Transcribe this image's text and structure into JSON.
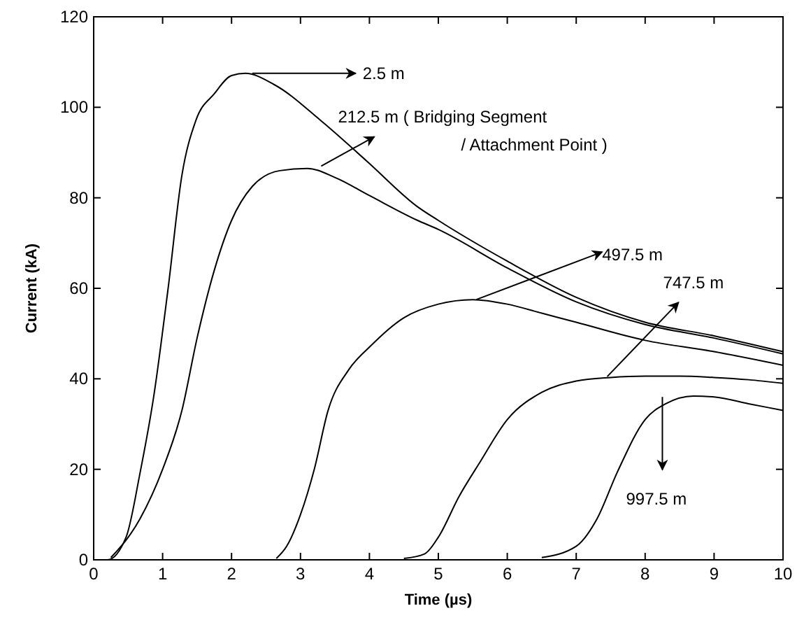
{
  "chart_data": {
    "type": "line",
    "xlabel": "Time (µs)",
    "ylabel": "Current (kA)",
    "xlim": [
      0,
      10
    ],
    "ylim": [
      0,
      120
    ],
    "xticks": [
      0,
      1,
      2,
      3,
      4,
      5,
      6,
      7,
      8,
      9,
      10
    ],
    "yticks": [
      0,
      20,
      40,
      60,
      80,
      100,
      120
    ],
    "grid": false,
    "marker": "none",
    "line_style": "solid",
    "series": [
      {
        "color": "#000000",
        "x": [
          0,
          0.2,
          0.47,
          0.67,
          0.87,
          1.08,
          1.28,
          1.48,
          1.75,
          2.0,
          2.2,
          2.62,
          3.3,
          3.97,
          4.7,
          5,
          6,
          7,
          8,
          9,
          10
        ],
        "values": [
          0,
          0,
          5,
          19,
          36,
          60,
          85,
          97,
          103,
          107,
          107.5,
          105,
          97,
          88,
          78,
          75,
          66,
          58,
          52.5,
          49.5,
          46
        ]
      },
      {
        "color": "#000000",
        "x": [
          0.25,
          0.67,
          1.0,
          1.28,
          1.5,
          1.75,
          2.0,
          2.3,
          2.7,
          3.1,
          3.5,
          4.0,
          4.7,
          5,
          6,
          7,
          8,
          9,
          10
        ],
        "values": [
          0.5,
          9,
          20,
          33,
          49,
          64,
          75,
          82.5,
          86,
          86.5,
          84.5,
          80.5,
          75,
          73,
          64.5,
          57,
          52,
          49,
          45.5
        ]
      },
      {
        "color": "#000000",
        "x": [
          2.65,
          2.8,
          3.0,
          3.2,
          3.4,
          3.7,
          4.0,
          4.5,
          5,
          5.5,
          6,
          6.5,
          7,
          8,
          9,
          10
        ],
        "values": [
          0.3,
          3,
          10,
          20,
          33,
          42,
          47,
          53.5,
          56.5,
          57.5,
          56.5,
          54.5,
          52.5,
          48.5,
          46,
          43
        ]
      },
      {
        "color": "#000000",
        "x": [
          4.5,
          4.8,
          5.0,
          5.3,
          5.6,
          6.0,
          6.5,
          7.0,
          7.5,
          8,
          8.5,
          9,
          9.5,
          10
        ],
        "values": [
          0.3,
          1.3,
          5,
          14,
          21.5,
          31,
          37,
          39.5,
          40.3,
          40.6,
          40.6,
          40.3,
          39.8,
          39
        ]
      },
      {
        "color": "#000000",
        "x": [
          6.5,
          7,
          7.3,
          7.6,
          8.0,
          8.3,
          8.7,
          9,
          9.5,
          10
        ],
        "values": [
          0.5,
          3,
          9,
          19.5,
          31,
          34.5,
          36.2,
          36,
          34.5,
          33
        ]
      }
    ],
    "annotations": [
      {
        "text": "2.5 m",
        "x": 2.3,
        "y": 107.5
      },
      {
        "text": "212.5 m ( Bridging Segment\n/ Attachment Point )",
        "x": 3.3,
        "y": 87
      },
      {
        "text": "497.5 m",
        "x": 5.55,
        "y": 57.5
      },
      {
        "text": "747.5 m",
        "x": 7.45,
        "y": 40.5
      },
      {
        "text": "997.5 m",
        "x": 8.25,
        "y": 36
      }
    ]
  }
}
